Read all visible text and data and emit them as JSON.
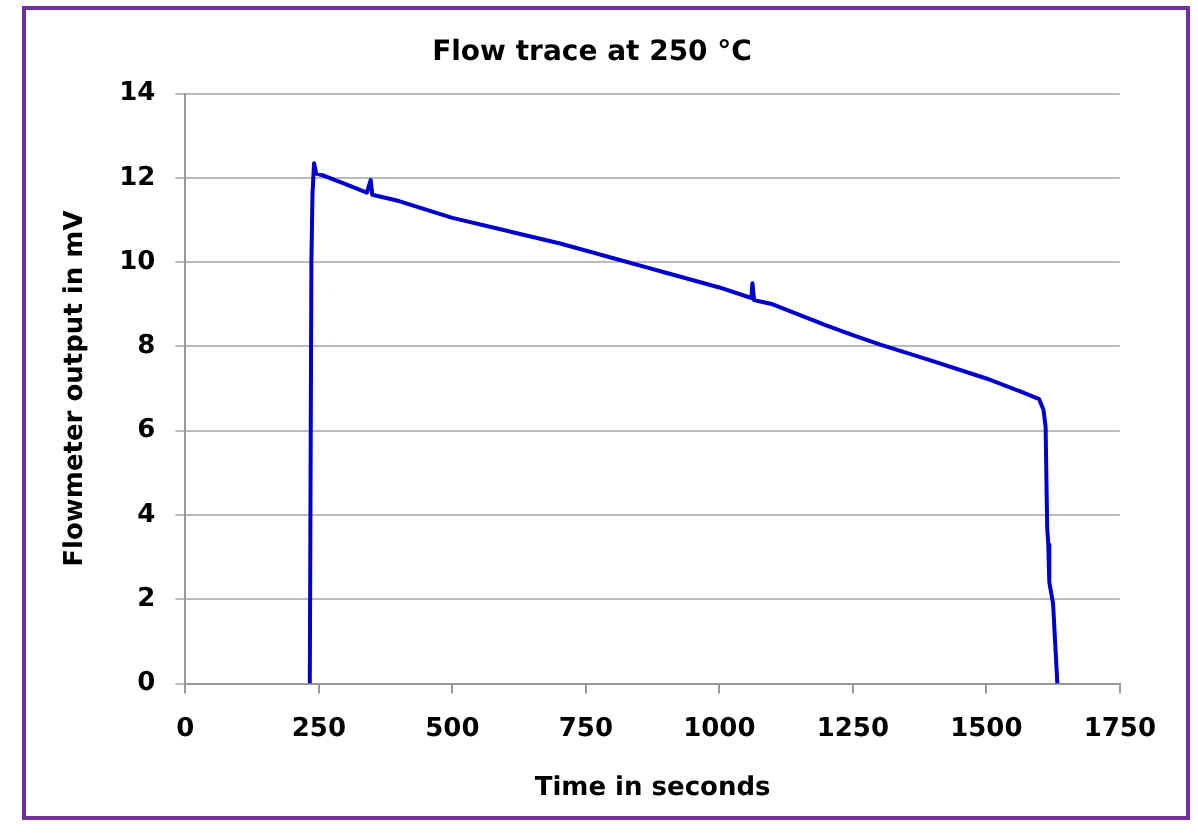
{
  "chart_data": {
    "type": "line",
    "title": "Flow trace at 250 °C",
    "xlabel": "Time in seconds",
    "ylabel": "Flowmeter output in mV",
    "x": [
      233,
      236,
      238,
      241,
      245,
      260,
      300,
      340,
      347,
      350,
      400,
      500,
      600,
      700,
      800,
      857,
      900,
      1000,
      1060,
      1062,
      1065,
      1100,
      1200,
      1250,
      1300,
      1400,
      1500,
      1560,
      1599,
      1607,
      1611,
      1614,
      1616,
      1618,
      1625,
      1633
    ],
    "series": [
      {
        "color": "#0000cc",
        "values": [
          0,
          10,
          11.6,
          12.35,
          12.1,
          12.05,
          11.85,
          11.65,
          11.95,
          11.6,
          11.45,
          11.05,
          10.75,
          10.45,
          10.1,
          9.9,
          9.75,
          9.4,
          9.15,
          9.5,
          9.1,
          9.0,
          8.5,
          8.27,
          8.05,
          7.65,
          7.24,
          6.95,
          6.75,
          6.5,
          6.1,
          3.7,
          3.3,
          2.4,
          1.9,
          0
        ]
      }
    ],
    "xlim": [
      0,
      1750
    ],
    "xticks": [
      0,
      250,
      500,
      750,
      1000,
      1250,
      1500,
      1750
    ],
    "ylim": [
      0,
      14
    ],
    "yticks": [
      0,
      2,
      4,
      6,
      8,
      10,
      12,
      14
    ],
    "grid": "y",
    "legend": false,
    "marker": "none",
    "line_style": "solid"
  }
}
